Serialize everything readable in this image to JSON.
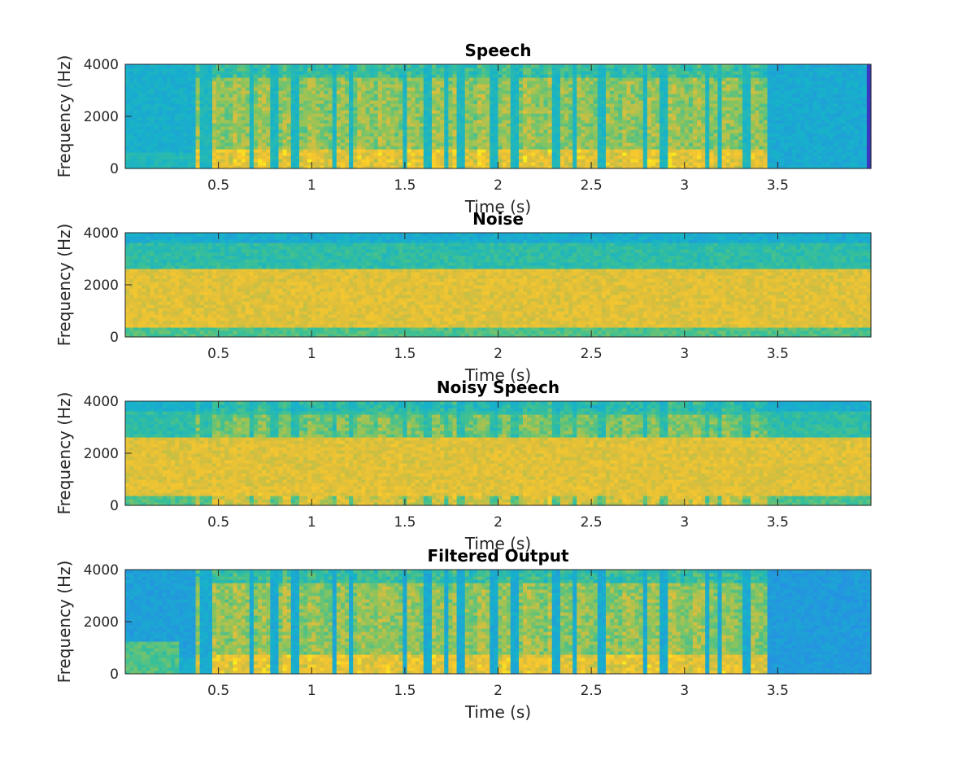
{
  "chart_data": [
    {
      "type": "heatmap",
      "title": "Speech",
      "xlabel": "Time (s)",
      "ylabel": "Frequency (Hz)",
      "xlim": [
        0,
        4
      ],
      "ylim": [
        0,
        4000
      ],
      "xticks": [
        0.5,
        1,
        1.5,
        2,
        2.5,
        3,
        3.5
      ],
      "xtick_labels": [
        "0.5",
        "1",
        "1.5",
        "2",
        "2.5",
        "3",
        "3.5"
      ],
      "yticks": [
        0,
        2000,
        4000
      ],
      "ytick_labels": [
        "0",
        "2000",
        "4000"
      ],
      "colormap": "parula",
      "description_of_energy": "speech bursts between about 0.37 s and 3.45 s with silence before and after"
    },
    {
      "type": "heatmap",
      "title": "Noise",
      "xlabel": "Time (s)",
      "ylabel": "Frequency (Hz)",
      "xlim": [
        0,
        4
      ],
      "ylim": [
        0,
        4000
      ],
      "xticks": [
        0.5,
        1,
        1.5,
        2,
        2.5,
        3,
        3.5
      ],
      "xtick_labels": [
        "0.5",
        "1",
        "1.5",
        "2",
        "2.5",
        "3",
        "3.5"
      ],
      "yticks": [
        0,
        2000,
        4000
      ],
      "ytick_labels": [
        "0",
        "2000",
        "4000"
      ],
      "colormap": "parula",
      "description_of_energy": "stationary band-limited noise, strongest between about 500 and 2500 Hz"
    },
    {
      "type": "heatmap",
      "title": "Noisy Speech",
      "xlabel": "Time (s)",
      "ylabel": "Frequency (Hz)",
      "xlim": [
        0,
        4
      ],
      "ylim": [
        0,
        4000
      ],
      "xticks": [
        0.5,
        1,
        1.5,
        2,
        2.5,
        3,
        3.5
      ],
      "xtick_labels": [
        "0.5",
        "1",
        "1.5",
        "2",
        "2.5",
        "3",
        "3.5"
      ],
      "yticks": [
        0,
        2000,
        4000
      ],
      "ytick_labels": [
        "0",
        "2000",
        "4000"
      ],
      "colormap": "parula",
      "description_of_energy": "speech plus noise"
    },
    {
      "type": "heatmap",
      "title": "Filtered Output",
      "xlabel": "Time (s)",
      "ylabel": "Frequency (Hz)",
      "xlim": [
        0,
        4
      ],
      "ylim": [
        0,
        4000
      ],
      "xticks": [
        0.5,
        1,
        1.5,
        2,
        2.5,
        3,
        3.5
      ],
      "xtick_labels": [
        "0.5",
        "1",
        "1.5",
        "2",
        "2.5",
        "3",
        "3.5"
      ],
      "yticks": [
        0,
        2000,
        4000
      ],
      "ytick_labels": [
        "0",
        "2000",
        "4000"
      ],
      "colormap": "parula",
      "description_of_energy": "speech recovered after filtering, noise band suppressed"
    }
  ],
  "speech_segments": [
    [
      0.37,
      0.41
    ],
    [
      0.46,
      0.66
    ],
    [
      0.7,
      0.78
    ],
    [
      0.82,
      0.89
    ],
    [
      0.93,
      1.1
    ],
    [
      1.13,
      1.19
    ],
    [
      1.23,
      1.48
    ],
    [
      1.51,
      1.59
    ],
    [
      1.64,
      1.7
    ],
    [
      1.73,
      1.77
    ],
    [
      1.82,
      1.95
    ],
    [
      1.99,
      2.06
    ],
    [
      2.11,
      2.29
    ],
    [
      2.33,
      2.4
    ],
    [
      2.43,
      2.54
    ],
    [
      2.57,
      2.78
    ],
    [
      2.81,
      2.87
    ],
    [
      2.91,
      3.1
    ],
    [
      3.13,
      3.18
    ],
    [
      3.21,
      3.31
    ],
    [
      3.35,
      3.45
    ]
  ],
  "colors": {
    "low": "#3e26a8",
    "mid": "#2eb7bd",
    "high": "#f9d029"
  }
}
